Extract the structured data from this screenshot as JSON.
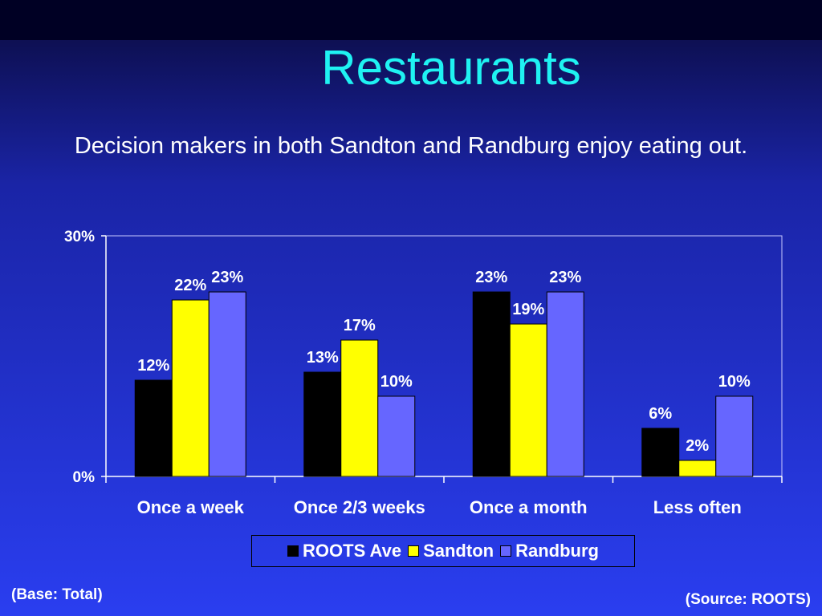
{
  "slide": {
    "title": "Restaurants",
    "subtitle": "Decision makers in both Sandton and Randburg enjoy eating out.",
    "base_note": "(Base: Total)",
    "source_note": "(Source: ROOTS)"
  },
  "colors": {
    "roots_ave": "#000000",
    "sandton": "#ffff00",
    "randburg": "#6666ff",
    "title": "#1ff2f2",
    "text": "#ffffff"
  },
  "chart_data": {
    "type": "bar",
    "categories": [
      "Once a week",
      "Once 2/3 weeks",
      "Once a month",
      "Less often"
    ],
    "series": [
      {
        "name": "ROOTS Ave",
        "values": [
          12,
          13,
          23,
          6
        ],
        "labels": [
          "12%",
          "13%",
          "23%",
          "6%"
        ],
        "color": "#000000"
      },
      {
        "name": "Sandton",
        "values": [
          22,
          17,
          19,
          2
        ],
        "labels": [
          "22%",
          "17%",
          "19%",
          "2%"
        ],
        "color": "#ffff00"
      },
      {
        "name": "Randburg",
        "values": [
          23,
          10,
          23,
          10
        ],
        "labels": [
          "23%",
          "10%",
          "23%",
          "10%"
        ],
        "color": "#6666ff"
      }
    ],
    "ylim": [
      0,
      30
    ],
    "yticks": [
      {
        "value": 0,
        "label": "0%"
      },
      {
        "value": 30,
        "label": "30%"
      }
    ],
    "grid": false,
    "legend": "bottom"
  }
}
